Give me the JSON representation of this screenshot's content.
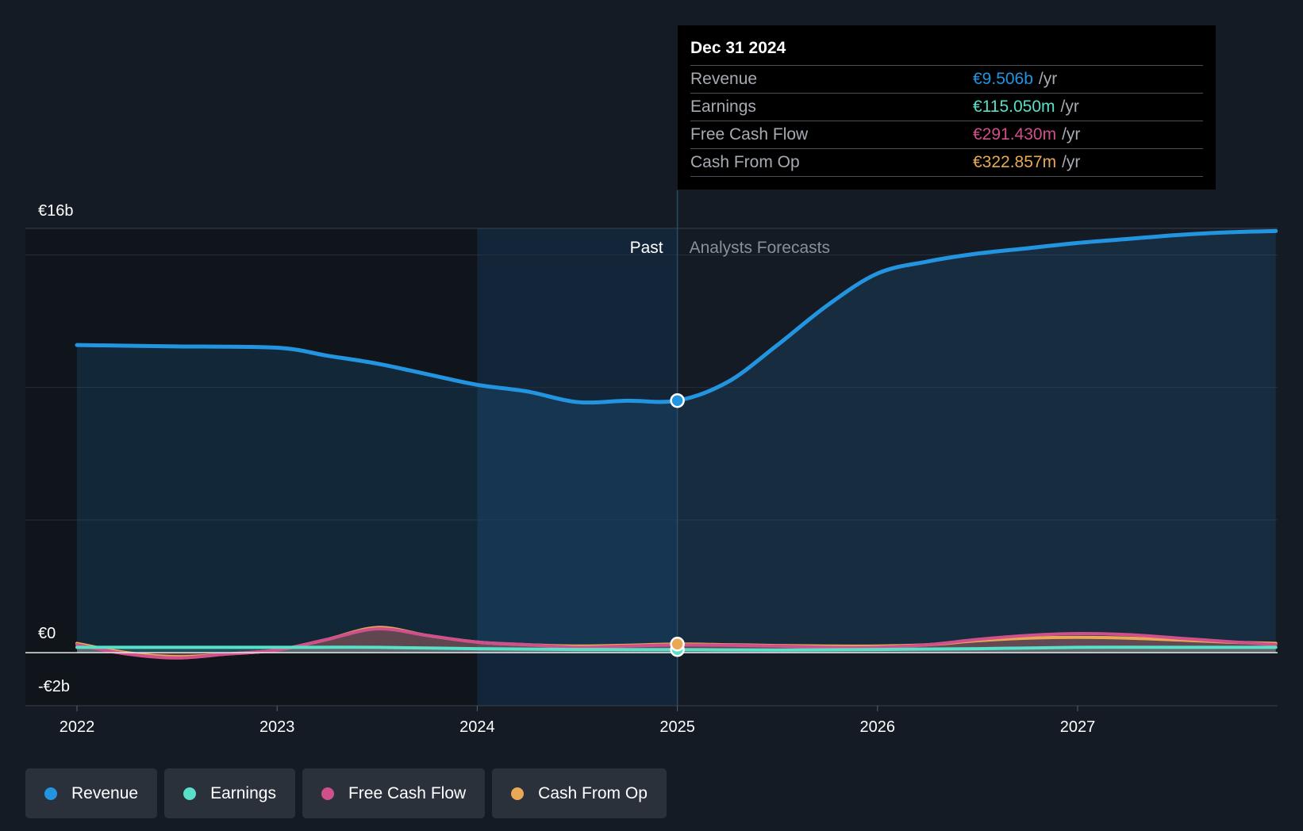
{
  "colors": {
    "revenue": "#2394e0",
    "earnings": "#58e0c8",
    "free_cash_flow": "#d0508c",
    "cash_from_op": "#e8a855",
    "background": "#151b24"
  },
  "tooltip": {
    "date": "Dec 31 2024",
    "rows": [
      {
        "name": "Revenue",
        "value": "€9.506b",
        "unit": "/yr",
        "color": "#2394e0"
      },
      {
        "name": "Earnings",
        "value": "€115.050m",
        "unit": "/yr",
        "color": "#58e0c8"
      },
      {
        "name": "Free Cash Flow",
        "value": "€291.430m",
        "unit": "/yr",
        "color": "#d0508c"
      },
      {
        "name": "Cash From Op",
        "value": "€322.857m",
        "unit": "/yr",
        "color": "#e8a855"
      }
    ]
  },
  "legend": [
    {
      "label": "Revenue",
      "color": "#2394e0"
    },
    {
      "label": "Earnings",
      "color": "#58e0c8"
    },
    {
      "label": "Free Cash Flow",
      "color": "#d0508c"
    },
    {
      "label": "Cash From Op",
      "color": "#e8a855"
    }
  ],
  "chart_data": {
    "type": "line",
    "title": "",
    "xlabel": "",
    "ylabel": "",
    "period_labels": {
      "past": "Past",
      "forecast": "Analysts Forecasts"
    },
    "y_tick_labels": {
      "top": "€16b",
      "zero": "€0",
      "bottom": "-€2b"
    },
    "ylim": [
      -2,
      16
    ],
    "xlim": [
      2021.75,
      2027.99
    ],
    "x_ticks": [
      2022,
      2023,
      2024,
      2025,
      2026,
      2027
    ],
    "x_tick_labels": [
      "2022",
      "2023",
      "2024",
      "2025",
      "2026",
      "2027"
    ],
    "gridlines_y": [
      0,
      5,
      10,
      15
    ],
    "past_end": 2025.0,
    "highlight_start": 2024.0,
    "series": [
      {
        "name": "Revenue",
        "color": "#2394e0",
        "x": [
          2022.0,
          2022.5,
          2023.0,
          2023.25,
          2023.5,
          2023.75,
          2024.0,
          2024.25,
          2024.5,
          2024.75,
          2025.0,
          2025.25,
          2025.5,
          2025.75,
          2026.0,
          2026.25,
          2026.5,
          2026.75,
          2027.0,
          2027.25,
          2027.5,
          2027.75,
          2027.99
        ],
        "values": [
          11.6,
          11.55,
          11.5,
          11.2,
          10.9,
          10.5,
          10.1,
          9.85,
          9.45,
          9.5,
          9.506,
          10.2,
          11.6,
          13.1,
          14.3,
          14.75,
          15.05,
          15.25,
          15.45,
          15.6,
          15.75,
          15.85,
          15.9
        ]
      },
      {
        "name": "Earnings",
        "color": "#58e0c8",
        "x": [
          2022.0,
          2022.5,
          2023.0,
          2023.5,
          2024.0,
          2024.5,
          2025.0,
          2025.5,
          2026.0,
          2026.5,
          2027.0,
          2027.5,
          2027.99
        ],
        "values": [
          0.2,
          0.2,
          0.2,
          0.2,
          0.15,
          0.12,
          0.115,
          0.1,
          0.12,
          0.15,
          0.2,
          0.2,
          0.2
        ]
      },
      {
        "name": "Free Cash Flow",
        "color": "#d0508c",
        "x": [
          2022.0,
          2022.25,
          2022.5,
          2022.75,
          2023.0,
          2023.25,
          2023.5,
          2023.75,
          2024.0,
          2024.25,
          2024.5,
          2024.75,
          2025.0,
          2025.25,
          2025.5,
          2025.75,
          2026.0,
          2026.25,
          2026.5,
          2026.75,
          2027.0,
          2027.25,
          2027.5,
          2027.75,
          2027.99
        ],
        "values": [
          0.3,
          -0.05,
          -0.2,
          -0.05,
          0.1,
          0.5,
          0.9,
          0.65,
          0.4,
          0.3,
          0.2,
          0.25,
          0.291,
          0.28,
          0.25,
          0.2,
          0.2,
          0.3,
          0.5,
          0.65,
          0.72,
          0.68,
          0.55,
          0.42,
          0.3
        ]
      },
      {
        "name": "Cash From Op",
        "color": "#e8a855",
        "x": [
          2022.0,
          2022.25,
          2022.5,
          2022.75,
          2023.0,
          2023.25,
          2023.5,
          2023.75,
          2024.0,
          2024.25,
          2024.5,
          2024.75,
          2025.0,
          2025.25,
          2025.5,
          2025.75,
          2026.0,
          2026.25,
          2026.5,
          2026.75,
          2027.0,
          2027.25,
          2027.5,
          2027.75,
          2027.99
        ],
        "values": [
          0.35,
          0.0,
          -0.15,
          -0.05,
          0.1,
          0.5,
          0.95,
          0.65,
          0.4,
          0.3,
          0.25,
          0.28,
          0.323,
          0.3,
          0.27,
          0.25,
          0.25,
          0.3,
          0.45,
          0.55,
          0.58,
          0.55,
          0.48,
          0.4,
          0.35
        ]
      }
    ]
  }
}
